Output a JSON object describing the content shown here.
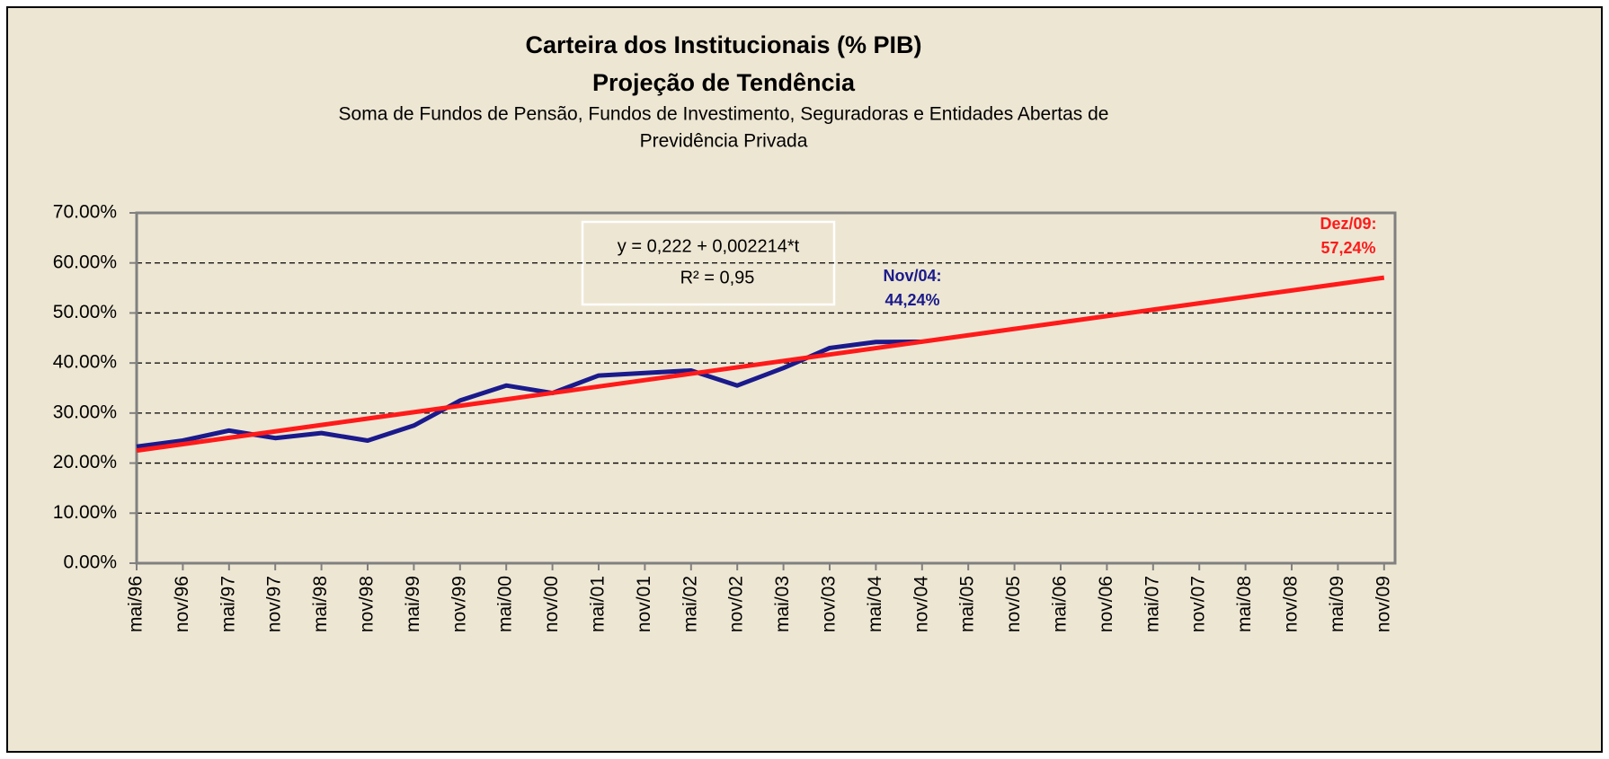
{
  "chart_data": {
    "type": "line",
    "title": "Carteira dos Institucionais (% PIB)",
    "subtitle": "Projeção de Tendência",
    "description": [
      "Soma de Fundos de Pensão, Fundos de Investimento, Seguradoras e Entidades Abertas de",
      "Previdência Privada"
    ],
    "annotations": {
      "equation": "y = 0,222 + 0,002214*t",
      "r_squared": "R² = 0,95",
      "last_actual": [
        "Nov/04:",
        "44,24%"
      ],
      "projection_end": [
        "Dez/09:",
        "57,24%"
      ]
    },
    "categories": [
      "mai/96",
      "nov/96",
      "mai/97",
      "nov/97",
      "mai/98",
      "nov/98",
      "mai/99",
      "nov/99",
      "mai/00",
      "nov/00",
      "mai/01",
      "nov/01",
      "mai/02",
      "nov/02",
      "mai/03",
      "nov/03",
      "mai/04",
      "nov/04",
      "mai/05",
      "nov/05",
      "mai/06",
      "nov/06",
      "mai/07",
      "nov/07",
      "mai/08",
      "nov/08",
      "mai/09",
      "nov/09"
    ],
    "series": [
      {
        "color": "#1a1a8c",
        "values": [
          23.3,
          24.5,
          26.5,
          25,
          26,
          24.5,
          27.5,
          32.5,
          35.5,
          34,
          37.5,
          38,
          38.5,
          35.5,
          39,
          43,
          44.2,
          44.24,
          null,
          null,
          null,
          null,
          null,
          null,
          null,
          null,
          null,
          null
        ]
      },
      {
        "color": "#ff1a1a",
        "values": [
          22.5,
          23.78,
          25.06,
          26.34,
          27.62,
          28.9,
          30.18,
          31.46,
          32.74,
          34.02,
          35.3,
          36.58,
          37.86,
          39.14,
          40.42,
          41.7,
          42.98,
          44.26,
          45.54,
          46.82,
          48.1,
          49.38,
          50.66,
          51.94,
          53.22,
          54.5,
          55.78,
          57.06
        ]
      }
    ],
    "ylim": [
      0,
      70
    ],
    "yticks": [
      {
        "value": 0,
        "label": "0.00%"
      },
      {
        "value": 10,
        "label": "10.00%"
      },
      {
        "value": 20,
        "label": "20.00%"
      },
      {
        "value": 30,
        "label": "30.00%"
      },
      {
        "value": 40,
        "label": "40.00%"
      },
      {
        "value": 50,
        "label": "50.00%"
      },
      {
        "value": 60,
        "label": "60.00%"
      },
      {
        "value": 70,
        "label": "70.00%"
      }
    ],
    "grid": true
  }
}
